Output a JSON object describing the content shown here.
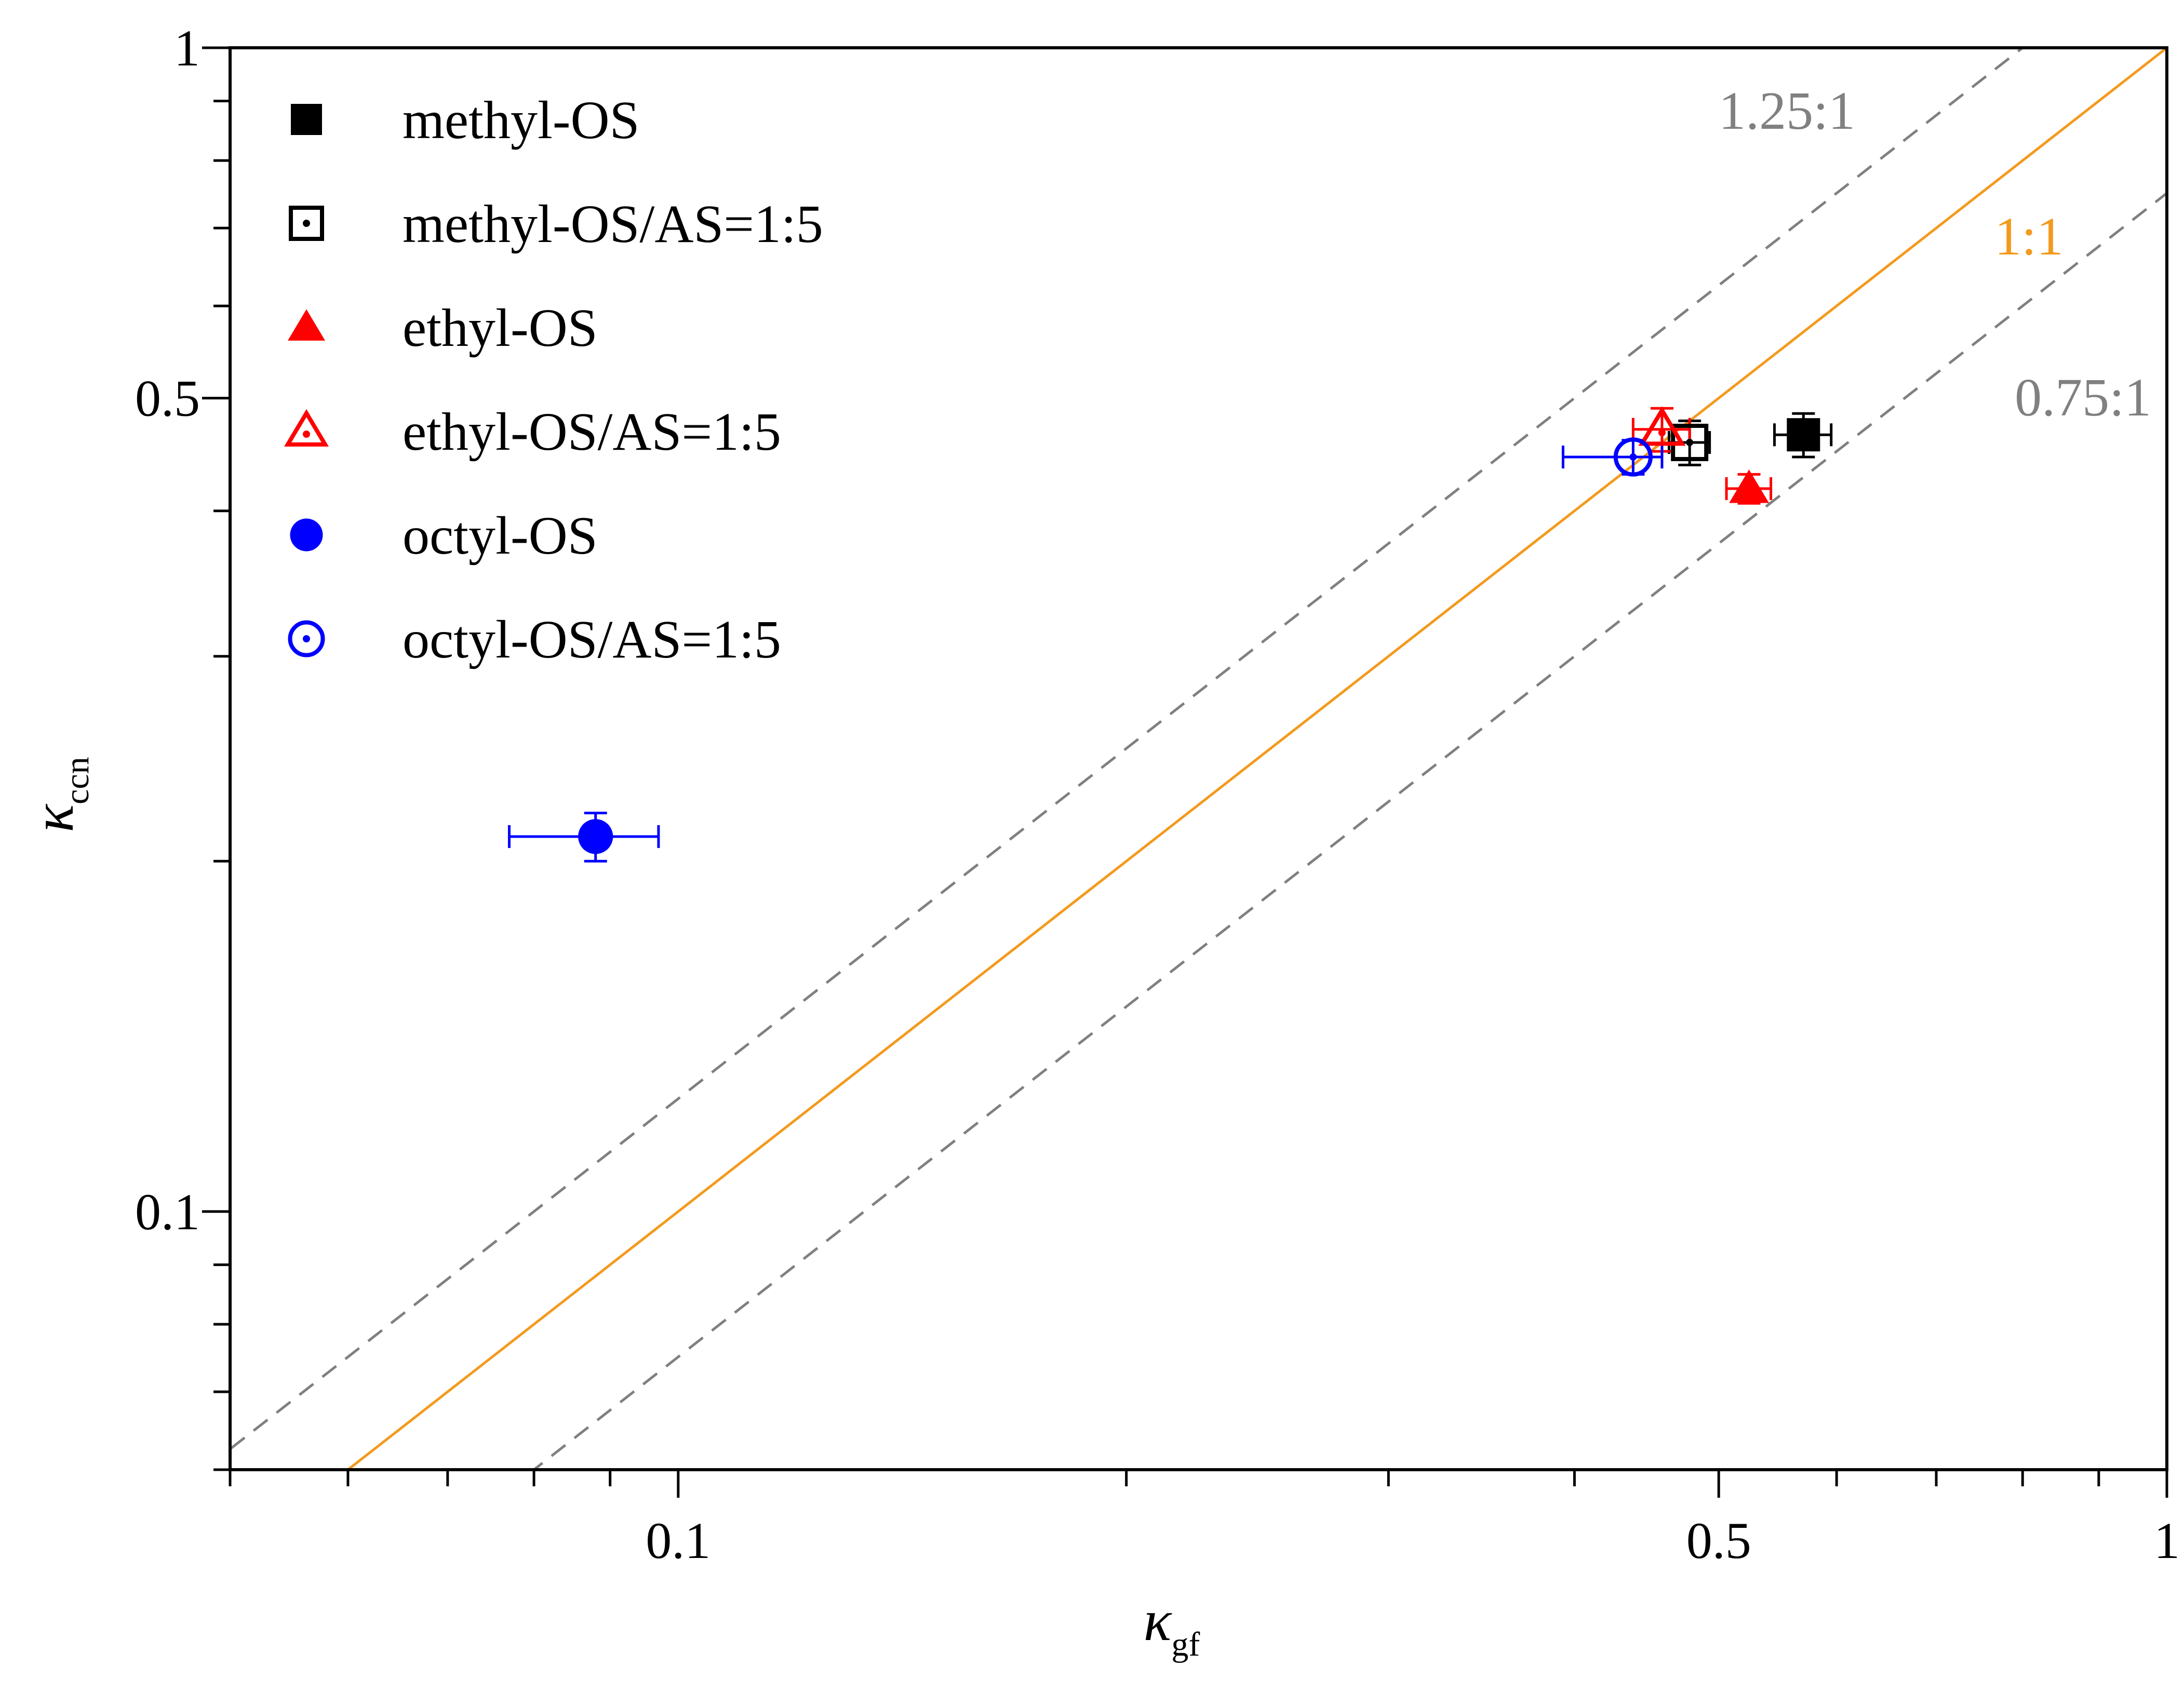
{
  "chart_data": {
    "type": "scatter",
    "xscale": "log",
    "yscale": "log",
    "xlim": [
      0.05,
      1
    ],
    "ylim": [
      0.06,
      1
    ],
    "x_ticks": [
      {
        "value": 0.1,
        "label": "0.1"
      },
      {
        "value": 0.5,
        "label": "0.5"
      },
      {
        "value": 1,
        "label": "1"
      }
    ],
    "y_ticks": [
      {
        "value": 0.1,
        "label": "0.1"
      },
      {
        "value": 0.5,
        "label": "0.5"
      },
      {
        "value": 1,
        "label": "1"
      }
    ],
    "xlabel": {
      "symbol": "κ",
      "sub": "gf"
    },
    "ylabel": {
      "symbol": "κ",
      "sub": "ccn"
    },
    "legend_position": "top-left",
    "series": [
      {
        "name": "methyl-OS",
        "marker": "square",
        "fill": "filled",
        "color": "#000000",
        "points": [
          {
            "x": 0.57,
            "y": 0.465,
            "xerr": 0.025,
            "yerr": 0.02
          }
        ]
      },
      {
        "name": "methyl-OS/AS=1:5",
        "marker": "square",
        "fill": "open-dot",
        "color": "#000000",
        "points": [
          {
            "x": 0.478,
            "y": 0.458,
            "xerr": 0.015,
            "yerr": 0.02
          }
        ]
      },
      {
        "name": "ethyl-OS",
        "marker": "triangle",
        "fill": "filled",
        "color": "#ff0000",
        "points": [
          {
            "x": 0.524,
            "y": 0.418,
            "xerr": 0.018,
            "yerr": 0.012
          }
        ]
      },
      {
        "name": "ethyl-OS/AS=1:5",
        "marker": "triangle",
        "fill": "open-dot",
        "color": "#ff0000",
        "points": [
          {
            "x": 0.458,
            "y": 0.47,
            "xerr": 0.02,
            "yerr": 0.02
          }
        ]
      },
      {
        "name": "octyl-OS",
        "marker": "circle",
        "fill": "filled",
        "color": "#0000ff",
        "points": [
          {
            "x": 0.088,
            "y": 0.21,
            "xerr_minus": 0.011,
            "xerr_plus": 0.009,
            "yerr": 0.01
          }
        ]
      },
      {
        "name": "octyl-OS/AS=1:5",
        "marker": "circle",
        "fill": "open-dot",
        "color": "#0000ff",
        "points": [
          {
            "x": 0.438,
            "y": 0.445,
            "xerr_minus": 0.045,
            "xerr_plus": 0.02,
            "yerr": 0.015
          }
        ]
      }
    ],
    "reference_lines": [
      {
        "label": "1:1",
        "slope": 1,
        "color": "#f39a1e",
        "style": "solid"
      },
      {
        "label": "1.25:1",
        "slope": 1.25,
        "color": "#808080",
        "style": "dashed"
      },
      {
        "label": "0.75:1",
        "slope": 0.75,
        "color": "#808080",
        "style": "dashed"
      }
    ]
  }
}
